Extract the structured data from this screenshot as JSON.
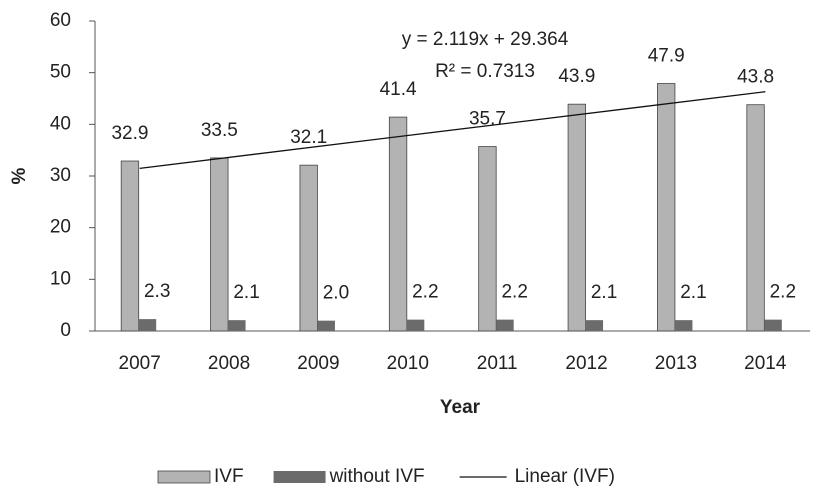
{
  "chart_data": {
    "type": "bar",
    "x_label": "Year",
    "y_label": "%",
    "categories": [
      "2007",
      "2008",
      "2009",
      "2010",
      "2011",
      "2012",
      "2013",
      "2014"
    ],
    "series": [
      {
        "name": "IVF",
        "color": "#b3b3b3",
        "values": [
          32.9,
          33.5,
          32.1,
          41.4,
          35.7,
          43.9,
          47.9,
          43.8
        ]
      },
      {
        "name": "without IVF",
        "color": "#6b6b6b",
        "values": [
          2.3,
          2.1,
          2,
          2.2,
          2.2,
          2.1,
          2.1,
          2.2
        ],
        "value_labels": [
          "2.3",
          "2.1",
          "2.0",
          "2.2",
          "2.2",
          "2.1",
          "2.1",
          "2.2"
        ]
      }
    ],
    "trendline": {
      "name": "Linear (IVF)",
      "color": "#111111",
      "slope": 2.119,
      "intercept": 29.364,
      "equation": "y = 2.119x + 29.364",
      "r_squared": "R² = 0.7313"
    },
    "ylim": [
      0,
      60
    ],
    "yticks": [
      0,
      10,
      20,
      30,
      40,
      50,
      60
    ],
    "grid": false,
    "legend": "bottom"
  }
}
